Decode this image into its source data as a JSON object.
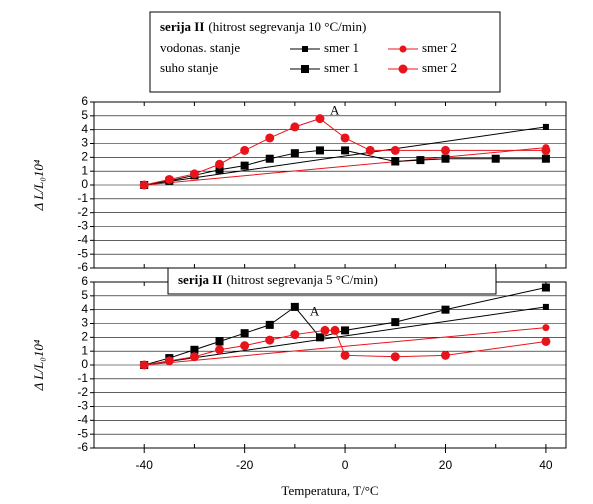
{
  "chart_data": [
    {
      "type": "line",
      "title": "serija II",
      "subtitle": "(hitrost segrevanja 10 °C/min)",
      "legend": true,
      "ylabel": "Δ L/L₀10⁴",
      "xlim": [
        -50,
        44
      ],
      "ylim": [
        -6,
        6
      ],
      "yticks": [
        -6,
        -5,
        -4,
        -3,
        -2,
        -1,
        0,
        1,
        2,
        3,
        4,
        5,
        6
      ],
      "grid": true,
      "annotations": [
        {
          "text": "A",
          "x": -3,
          "y": 5.3
        }
      ],
      "series": [
        {
          "group": "vodonas. stanje",
          "name": "smer 1",
          "color": "#000000",
          "marker": "square",
          "x": [
            -40,
            40
          ],
          "values": [
            0,
            4.2
          ]
        },
        {
          "group": "vodonas. stanje",
          "name": "smer 2",
          "color": "#e8141c",
          "marker": "circle",
          "x": [
            -40,
            40
          ],
          "values": [
            0,
            2.7
          ]
        },
        {
          "group": "suho stanje",
          "name": "smer 1",
          "color": "#000000",
          "marker": "square",
          "x": [
            -40,
            -35,
            -30,
            -25,
            -20,
            -15,
            -10,
            -5,
            0,
            10,
            15,
            20,
            30,
            40
          ],
          "values": [
            0,
            0.3,
            0.7,
            1.1,
            1.4,
            1.9,
            2.3,
            2.5,
            2.5,
            1.7,
            1.8,
            1.9,
            1.9,
            1.9
          ]
        },
        {
          "group": "suho stanje",
          "name": "smer 2",
          "color": "#e8141c",
          "marker": "circle",
          "x": [
            -40,
            -35,
            -30,
            -25,
            -20,
            -15,
            -10,
            -5,
            0,
            5,
            10,
            20,
            40
          ],
          "values": [
            0,
            0.4,
            0.8,
            1.5,
            2.5,
            3.4,
            4.2,
            4.8,
            3.4,
            2.5,
            2.5,
            2.5,
            2.5
          ]
        }
      ]
    },
    {
      "type": "line",
      "title": "serija II",
      "subtitle": "(hitrost segrevanja 5 °C/min)",
      "legend": false,
      "ylabel": "Δ L/L₀10⁴",
      "xlabel": "Temperatura, T/°C",
      "xlim": [
        -50,
        44
      ],
      "ylim": [
        -6,
        6
      ],
      "xticks": [
        -40,
        -20,
        0,
        20,
        40
      ],
      "yticks": [
        -6,
        -5,
        -4,
        -3,
        -2,
        -1,
        0,
        1,
        2,
        3,
        4,
        5,
        6
      ],
      "grid": true,
      "annotations": [
        {
          "text": "A",
          "x": -7,
          "y": 3.8
        }
      ],
      "series": [
        {
          "color": "#000000",
          "marker": "square",
          "x": [
            -40,
            40
          ],
          "values": [
            0,
            4.2
          ]
        },
        {
          "color": "#e8141c",
          "marker": "circle",
          "x": [
            -40,
            40
          ],
          "values": [
            0,
            2.7
          ]
        },
        {
          "color": "#000000",
          "marker": "square",
          "x": [
            -40,
            -35,
            -30,
            -25,
            -20,
            -15,
            -10,
            -5,
            0,
            10,
            20,
            40
          ],
          "values": [
            0,
            0.5,
            1.1,
            1.7,
            2.3,
            2.9,
            4.2,
            2.0,
            2.5,
            3.1,
            4.0,
            5.6
          ]
        },
        {
          "color": "#e8141c",
          "marker": "circle",
          "x": [
            -40,
            -35,
            -30,
            -25,
            -20,
            -15,
            -10,
            -4,
            -2,
            0,
            10,
            20,
            40
          ],
          "values": [
            0,
            0.3,
            0.6,
            1.1,
            1.4,
            1.8,
            2.2,
            2.5,
            2.5,
            0.7,
            0.6,
            0.7,
            1.7
          ]
        }
      ]
    }
  ]
}
